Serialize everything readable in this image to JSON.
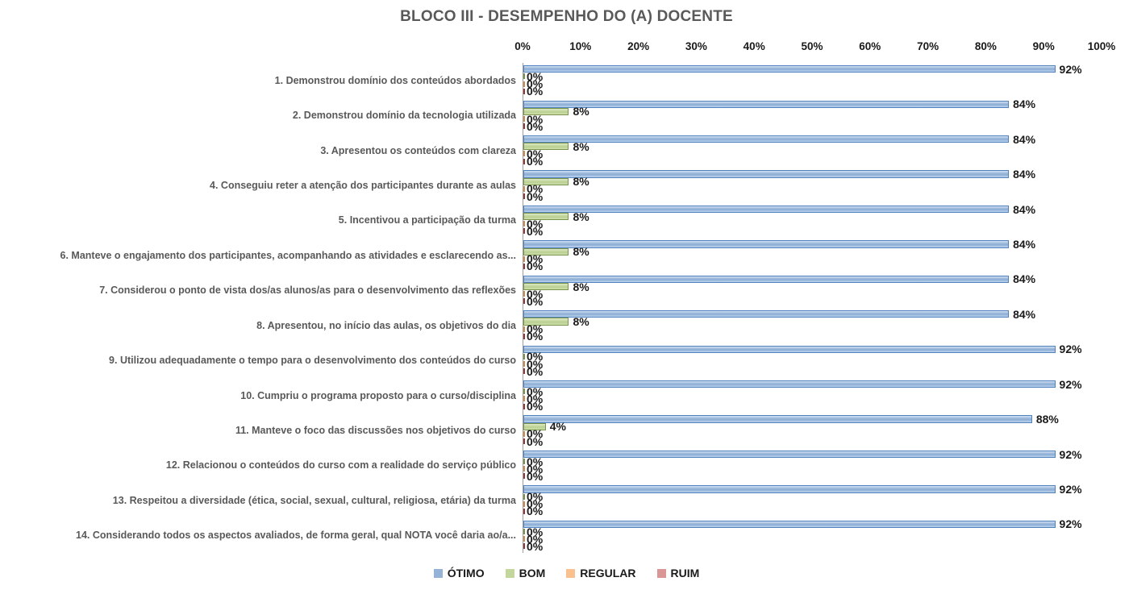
{
  "chart_data": {
    "type": "bar",
    "orientation": "horizontal",
    "title": "BLOCO III - DESEMPENHO DO (A) DOCENTE",
    "title_color": "#595959",
    "categories": [
      "1. Demonstrou domínio dos conteúdos abordados",
      "2. Demonstrou domínio da tecnologia utilizada",
      "3. Apresentou os conteúdos com clareza",
      "4. Conseguiu reter a atenção dos participantes durante as aulas",
      "5. Incentivou a participação da turma",
      "6. Manteve o engajamento dos participantes, acompanhando as atividades e esclarecendo as...",
      "7. Considerou o ponto de vista dos/as alunos/as para o desenvolvimento das reflexões",
      "8. Apresentou, no início das aulas, os objetivos do dia",
      "9. Utilizou adequadamente o tempo para o desenvolvimento dos conteúdos do curso",
      "10. Cumpriu o programa proposto para o curso/disciplina",
      "11. Manteve o foco das discussões nos objetivos do curso",
      "12. Relacionou o conteúdos do curso com a realidade do serviço público",
      "13. Respeitou a diversidade (ética, social, sexual, cultural, religiosa, etária) da turma",
      "14. Considerando todos os aspectos avaliados, de forma geral, qual NOTA você daria ao/a..."
    ],
    "series": [
      {
        "name": "ÓTIMO",
        "fill": "#95b3d7",
        "border": "#4f81bd",
        "gradient_top": "#cfe0f4",
        "gradient_bottom": "#bcd4f0",
        "values": [
          92,
          84,
          84,
          84,
          84,
          84,
          84,
          84,
          92,
          92,
          88,
          92,
          92,
          92
        ]
      },
      {
        "name": "BOM",
        "fill": "#c3d69b",
        "border": "#79944a",
        "gradient_top": "#dde9c4",
        "gradient_bottom": "#cfe0ad",
        "values": [
          0,
          8,
          8,
          8,
          8,
          8,
          8,
          8,
          0,
          0,
          4,
          0,
          0,
          0
        ]
      },
      {
        "name": "REGULAR",
        "fill": "#fac090",
        "border": "#d08c4e",
        "gradient_top": "#fdd7b4",
        "gradient_bottom": "#fac090",
        "values": [
          0,
          0,
          0,
          0,
          0,
          0,
          0,
          0,
          0,
          0,
          0,
          0,
          0,
          0
        ]
      },
      {
        "name": "RUIM",
        "fill": "#d99694",
        "border": "#953735",
        "gradient_top": "#e5b3b1",
        "gradient_bottom": "#d99694",
        "values": [
          0,
          0,
          0,
          0,
          0,
          0,
          0,
          0,
          0,
          0,
          0,
          0,
          0,
          0
        ]
      }
    ],
    "x_axis": {
      "min": 0,
      "max": 100,
      "tick_step": 10,
      "ticks": [
        "0%",
        "10%",
        "20%",
        "30%",
        "40%",
        "50%",
        "60%",
        "70%",
        "80%",
        "90%",
        "100%"
      ]
    },
    "data_labels": true,
    "data_label_suffix": "%",
    "grid": false,
    "legend": {
      "position": "bottom",
      "items": [
        "ÓTIMO",
        "BOM",
        "REGULAR",
        "RUIM"
      ]
    }
  }
}
